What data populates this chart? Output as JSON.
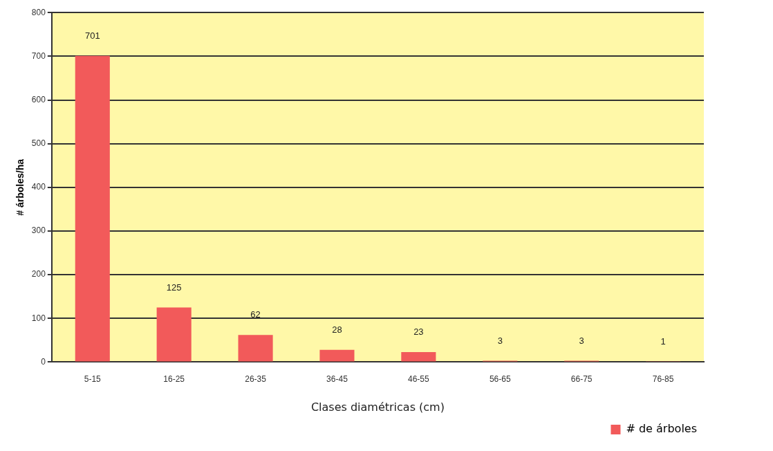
{
  "chart_data": {
    "type": "bar",
    "xlabel": "Clases diamétricas (cm)",
    "ylabel": "# árboles/ha",
    "categories": [
      "5-15",
      "16-25",
      "26-35",
      "36-45",
      "46-55",
      "56-65",
      "66-75",
      "76-85"
    ],
    "series": [
      {
        "name": "# de árboles",
        "color": "#f25a5a",
        "values": [
          701,
          125,
          62,
          28,
          23,
          3,
          3,
          1
        ]
      }
    ],
    "ylim": [
      0,
      800
    ],
    "yticks": [
      0,
      100,
      200,
      300,
      400,
      500,
      600,
      700,
      800
    ],
    "grid": "y",
    "legend": "bottom right",
    "data_labels": true
  }
}
